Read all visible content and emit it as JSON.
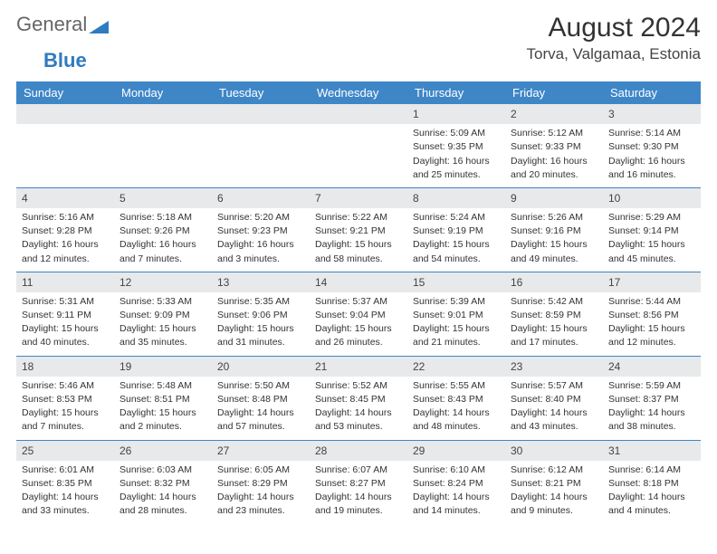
{
  "brand": {
    "text1": "General",
    "text2": "Blue",
    "logo_color": "#2f7bbf"
  },
  "title": "August 2024",
  "location": "Torva, Valgamaa, Estonia",
  "colors": {
    "header_bg": "#3f86c7",
    "header_text": "#ffffff",
    "daynum_bg": "#e7e9ea",
    "week_border": "#3f86c7",
    "text": "#333333"
  },
  "day_headers": [
    "Sunday",
    "Monday",
    "Tuesday",
    "Wednesday",
    "Thursday",
    "Friday",
    "Saturday"
  ],
  "weeks": [
    [
      {
        "n": "",
        "sr": "",
        "ss": "",
        "dl1": "",
        "dl2": ""
      },
      {
        "n": "",
        "sr": "",
        "ss": "",
        "dl1": "",
        "dl2": ""
      },
      {
        "n": "",
        "sr": "",
        "ss": "",
        "dl1": "",
        "dl2": ""
      },
      {
        "n": "",
        "sr": "",
        "ss": "",
        "dl1": "",
        "dl2": ""
      },
      {
        "n": "1",
        "sr": "Sunrise: 5:09 AM",
        "ss": "Sunset: 9:35 PM",
        "dl1": "Daylight: 16 hours",
        "dl2": "and 25 minutes."
      },
      {
        "n": "2",
        "sr": "Sunrise: 5:12 AM",
        "ss": "Sunset: 9:33 PM",
        "dl1": "Daylight: 16 hours",
        "dl2": "and 20 minutes."
      },
      {
        "n": "3",
        "sr": "Sunrise: 5:14 AM",
        "ss": "Sunset: 9:30 PM",
        "dl1": "Daylight: 16 hours",
        "dl2": "and 16 minutes."
      }
    ],
    [
      {
        "n": "4",
        "sr": "Sunrise: 5:16 AM",
        "ss": "Sunset: 9:28 PM",
        "dl1": "Daylight: 16 hours",
        "dl2": "and 12 minutes."
      },
      {
        "n": "5",
        "sr": "Sunrise: 5:18 AM",
        "ss": "Sunset: 9:26 PM",
        "dl1": "Daylight: 16 hours",
        "dl2": "and 7 minutes."
      },
      {
        "n": "6",
        "sr": "Sunrise: 5:20 AM",
        "ss": "Sunset: 9:23 PM",
        "dl1": "Daylight: 16 hours",
        "dl2": "and 3 minutes."
      },
      {
        "n": "7",
        "sr": "Sunrise: 5:22 AM",
        "ss": "Sunset: 9:21 PM",
        "dl1": "Daylight: 15 hours",
        "dl2": "and 58 minutes."
      },
      {
        "n": "8",
        "sr": "Sunrise: 5:24 AM",
        "ss": "Sunset: 9:19 PM",
        "dl1": "Daylight: 15 hours",
        "dl2": "and 54 minutes."
      },
      {
        "n": "9",
        "sr": "Sunrise: 5:26 AM",
        "ss": "Sunset: 9:16 PM",
        "dl1": "Daylight: 15 hours",
        "dl2": "and 49 minutes."
      },
      {
        "n": "10",
        "sr": "Sunrise: 5:29 AM",
        "ss": "Sunset: 9:14 PM",
        "dl1": "Daylight: 15 hours",
        "dl2": "and 45 minutes."
      }
    ],
    [
      {
        "n": "11",
        "sr": "Sunrise: 5:31 AM",
        "ss": "Sunset: 9:11 PM",
        "dl1": "Daylight: 15 hours",
        "dl2": "and 40 minutes."
      },
      {
        "n": "12",
        "sr": "Sunrise: 5:33 AM",
        "ss": "Sunset: 9:09 PM",
        "dl1": "Daylight: 15 hours",
        "dl2": "and 35 minutes."
      },
      {
        "n": "13",
        "sr": "Sunrise: 5:35 AM",
        "ss": "Sunset: 9:06 PM",
        "dl1": "Daylight: 15 hours",
        "dl2": "and 31 minutes."
      },
      {
        "n": "14",
        "sr": "Sunrise: 5:37 AM",
        "ss": "Sunset: 9:04 PM",
        "dl1": "Daylight: 15 hours",
        "dl2": "and 26 minutes."
      },
      {
        "n": "15",
        "sr": "Sunrise: 5:39 AM",
        "ss": "Sunset: 9:01 PM",
        "dl1": "Daylight: 15 hours",
        "dl2": "and 21 minutes."
      },
      {
        "n": "16",
        "sr": "Sunrise: 5:42 AM",
        "ss": "Sunset: 8:59 PM",
        "dl1": "Daylight: 15 hours",
        "dl2": "and 17 minutes."
      },
      {
        "n": "17",
        "sr": "Sunrise: 5:44 AM",
        "ss": "Sunset: 8:56 PM",
        "dl1": "Daylight: 15 hours",
        "dl2": "and 12 minutes."
      }
    ],
    [
      {
        "n": "18",
        "sr": "Sunrise: 5:46 AM",
        "ss": "Sunset: 8:53 PM",
        "dl1": "Daylight: 15 hours",
        "dl2": "and 7 minutes."
      },
      {
        "n": "19",
        "sr": "Sunrise: 5:48 AM",
        "ss": "Sunset: 8:51 PM",
        "dl1": "Daylight: 15 hours",
        "dl2": "and 2 minutes."
      },
      {
        "n": "20",
        "sr": "Sunrise: 5:50 AM",
        "ss": "Sunset: 8:48 PM",
        "dl1": "Daylight: 14 hours",
        "dl2": "and 57 minutes."
      },
      {
        "n": "21",
        "sr": "Sunrise: 5:52 AM",
        "ss": "Sunset: 8:45 PM",
        "dl1": "Daylight: 14 hours",
        "dl2": "and 53 minutes."
      },
      {
        "n": "22",
        "sr": "Sunrise: 5:55 AM",
        "ss": "Sunset: 8:43 PM",
        "dl1": "Daylight: 14 hours",
        "dl2": "and 48 minutes."
      },
      {
        "n": "23",
        "sr": "Sunrise: 5:57 AM",
        "ss": "Sunset: 8:40 PM",
        "dl1": "Daylight: 14 hours",
        "dl2": "and 43 minutes."
      },
      {
        "n": "24",
        "sr": "Sunrise: 5:59 AM",
        "ss": "Sunset: 8:37 PM",
        "dl1": "Daylight: 14 hours",
        "dl2": "and 38 minutes."
      }
    ],
    [
      {
        "n": "25",
        "sr": "Sunrise: 6:01 AM",
        "ss": "Sunset: 8:35 PM",
        "dl1": "Daylight: 14 hours",
        "dl2": "and 33 minutes."
      },
      {
        "n": "26",
        "sr": "Sunrise: 6:03 AM",
        "ss": "Sunset: 8:32 PM",
        "dl1": "Daylight: 14 hours",
        "dl2": "and 28 minutes."
      },
      {
        "n": "27",
        "sr": "Sunrise: 6:05 AM",
        "ss": "Sunset: 8:29 PM",
        "dl1": "Daylight: 14 hours",
        "dl2": "and 23 minutes."
      },
      {
        "n": "28",
        "sr": "Sunrise: 6:07 AM",
        "ss": "Sunset: 8:27 PM",
        "dl1": "Daylight: 14 hours",
        "dl2": "and 19 minutes."
      },
      {
        "n": "29",
        "sr": "Sunrise: 6:10 AM",
        "ss": "Sunset: 8:24 PM",
        "dl1": "Daylight: 14 hours",
        "dl2": "and 14 minutes."
      },
      {
        "n": "30",
        "sr": "Sunrise: 6:12 AM",
        "ss": "Sunset: 8:21 PM",
        "dl1": "Daylight: 14 hours",
        "dl2": "and 9 minutes."
      },
      {
        "n": "31",
        "sr": "Sunrise: 6:14 AM",
        "ss": "Sunset: 8:18 PM",
        "dl1": "Daylight: 14 hours",
        "dl2": "and 4 minutes."
      }
    ]
  ]
}
